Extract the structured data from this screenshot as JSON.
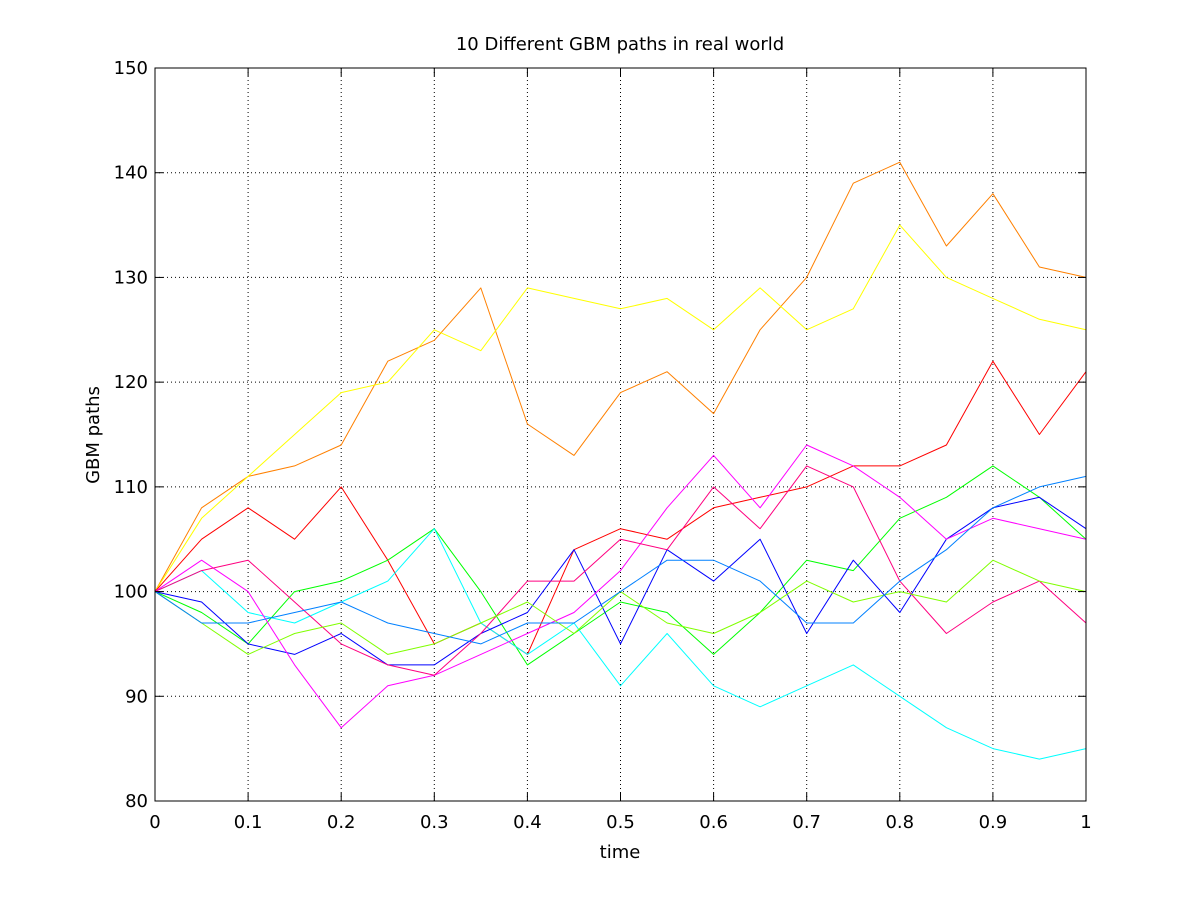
{
  "chart_data": {
    "type": "line",
    "title": "10 Different GBM paths in real world",
    "xlabel": "time",
    "ylabel": "GBM paths",
    "xlim": [
      0,
      1
    ],
    "ylim": [
      80,
      150
    ],
    "xticks": [
      "0",
      "0.1",
      "0.2",
      "0.3",
      "0.4",
      "0.5",
      "0.6",
      "0.7",
      "0.8",
      "0.9",
      "1"
    ],
    "yticks": [
      "80",
      "90",
      "100",
      "110",
      "120",
      "130",
      "140",
      "150"
    ],
    "grid": true,
    "legend": "none",
    "x": [
      0,
      0.05,
      0.1,
      0.15,
      0.2,
      0.25,
      0.3,
      0.35,
      0.4,
      0.45,
      0.5,
      0.55,
      0.6,
      0.65,
      0.7,
      0.75,
      0.8,
      0.85,
      0.9,
      0.95,
      1.0
    ],
    "series": [
      {
        "color": "#ff8000",
        "values": [
          100,
          108,
          111,
          112,
          114,
          122,
          124,
          129,
          116,
          113,
          119,
          121,
          117,
          125,
          130,
          139,
          141,
          133,
          138,
          131,
          130
        ]
      },
      {
        "color": "#ffff00",
        "values": [
          100,
          107,
          111,
          115,
          119,
          120,
          125,
          123,
          129,
          128,
          127,
          128,
          125,
          129,
          125,
          127,
          135,
          130,
          128,
          126,
          125
        ]
      },
      {
        "color": "#ff0000",
        "values": [
          100,
          105,
          108,
          105,
          110,
          103,
          95,
          97,
          94,
          104,
          106,
          105,
          108,
          109,
          110,
          112,
          112,
          114,
          122,
          115,
          121
        ]
      },
      {
        "color": "#00ff00",
        "values": [
          100,
          98,
          95,
          100,
          101,
          103,
          106,
          100,
          93,
          96,
          99,
          98,
          94,
          98,
          103,
          102,
          107,
          109,
          112,
          109,
          105
        ]
      },
      {
        "color": "#00ffff",
        "values": [
          100,
          102,
          98,
          97,
          99,
          101,
          106,
          97,
          94,
          97,
          91,
          96,
          91,
          89,
          91,
          93,
          90,
          87,
          85,
          84,
          85
        ]
      },
      {
        "color": "#0000ff",
        "values": [
          100,
          99,
          95,
          94,
          96,
          93,
          93,
          96,
          98,
          104,
          95,
          104,
          101,
          105,
          96,
          103,
          98,
          105,
          108,
          109,
          106
        ]
      },
      {
        "color": "#ff00ff",
        "values": [
          100,
          103,
          100,
          93,
          87,
          91,
          92,
          94,
          96,
          98,
          102,
          108,
          113,
          108,
          114,
          112,
          109,
          105,
          107,
          106,
          105
        ]
      },
      {
        "color": "#ff0080",
        "values": [
          100,
          102,
          103,
          99,
          95,
          93,
          92,
          96,
          101,
          101,
          105,
          104,
          110,
          106,
          112,
          110,
          101,
          96,
          99,
          101,
          97
        ]
      },
      {
        "color": "#80ff00",
        "values": [
          100,
          97,
          94,
          96,
          97,
          94,
          95,
          97,
          99,
          96,
          100,
          97,
          96,
          98,
          101,
          99,
          100,
          99,
          103,
          101,
          100
        ]
      },
      {
        "color": "#0080ff",
        "values": [
          100,
          97,
          97,
          98,
          99,
          97,
          96,
          95,
          97,
          97,
          100,
          103,
          103,
          101,
          97,
          97,
          101,
          104,
          108,
          110,
          111
        ]
      }
    ]
  }
}
